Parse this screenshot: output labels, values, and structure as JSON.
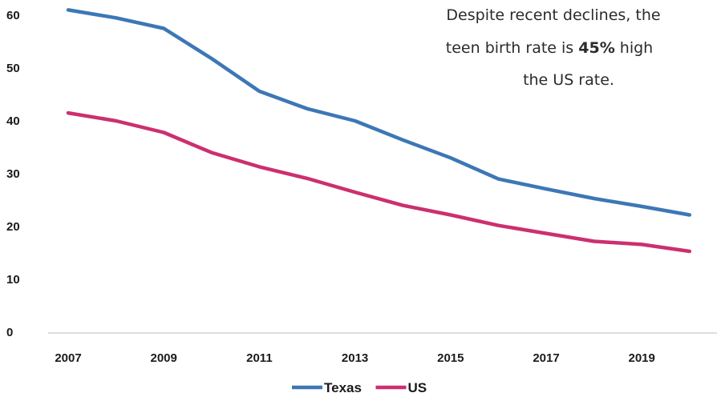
{
  "chart_data": {
    "type": "line",
    "x": [
      2007,
      2008,
      2009,
      2010,
      2011,
      2012,
      2013,
      2014,
      2015,
      2016,
      2017,
      2018,
      2019,
      2020
    ],
    "x_tick_labels": [
      "2007",
      "2009",
      "2011",
      "2013",
      "2015",
      "2017",
      "2019"
    ],
    "y_tick_labels": [
      "0",
      "10",
      "20",
      "30",
      "40",
      "50",
      "60"
    ],
    "ylim": [
      0,
      60
    ],
    "grid": false,
    "legend_position": "bottom-center",
    "series": [
      {
        "name": "Texas",
        "color": "#3d77b5",
        "values": [
          61.0,
          59.5,
          57.5,
          51.8,
          45.6,
          42.3,
          40.0,
          36.4,
          33.0,
          29.0,
          27.1,
          25.3,
          23.8,
          22.2
        ]
      },
      {
        "name": "US",
        "color": "#cc2f6f",
        "values": [
          41.5,
          40.0,
          37.8,
          34.0,
          31.3,
          29.1,
          26.5,
          24.0,
          22.2,
          20.2,
          18.7,
          17.2,
          16.6,
          15.3
        ]
      }
    ],
    "annotation": {
      "line1": "Despite recent declines, the",
      "line2_before": "teen birth rate is ",
      "line2_bold": "45%",
      "line2_after": " high",
      "line3": "the US rate."
    }
  }
}
